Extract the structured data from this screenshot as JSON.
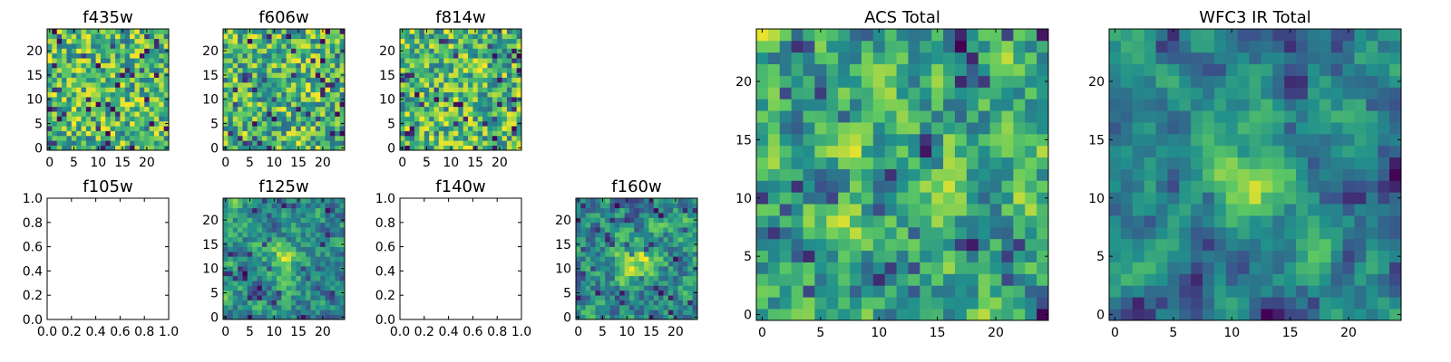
{
  "chart_data": [
    {
      "name": "f435w",
      "type": "heatmap",
      "title": "f435w",
      "has_data": true,
      "grid_size": 25,
      "seed": 11,
      "blob": 0.0,
      "smooth": 0,
      "xlim": [
        -0.5,
        24.5
      ],
      "ylim": [
        -0.5,
        24.5
      ],
      "xticks": [
        0,
        5,
        10,
        15,
        20
      ],
      "yticks": [
        0,
        5,
        10,
        15,
        20
      ],
      "xtick_labels": [
        "0",
        "5",
        "10",
        "15",
        "20"
      ],
      "ytick_labels": [
        "0",
        "5",
        "10",
        "15",
        "20"
      ]
    },
    {
      "name": "f606w",
      "type": "heatmap",
      "title": "f606w",
      "has_data": true,
      "grid_size": 25,
      "seed": 23,
      "blob": 0.0,
      "smooth": 0,
      "xlim": [
        -0.5,
        24.5
      ],
      "ylim": [
        -0.5,
        24.5
      ],
      "xticks": [
        0,
        5,
        10,
        15,
        20
      ],
      "yticks": [
        0,
        5,
        10,
        15,
        20
      ],
      "xtick_labels": [
        "0",
        "5",
        "10",
        "15",
        "20"
      ],
      "ytick_labels": [
        "0",
        "5",
        "10",
        "15",
        "20"
      ]
    },
    {
      "name": "f814w",
      "type": "heatmap",
      "title": "f814w",
      "has_data": true,
      "grid_size": 25,
      "seed": 37,
      "blob": 0.0,
      "smooth": 0,
      "xlim": [
        -0.5,
        24.5
      ],
      "ylim": [
        -0.5,
        24.5
      ],
      "xticks": [
        0,
        5,
        10,
        15,
        20
      ],
      "yticks": [
        0,
        5,
        10,
        15,
        20
      ],
      "xtick_labels": [
        "0",
        "5",
        "10",
        "15",
        "20"
      ],
      "ytick_labels": [
        "0",
        "5",
        "10",
        "15",
        "20"
      ]
    },
    {
      "name": "f105w",
      "type": "heatmap",
      "title": "f105w",
      "has_data": false,
      "xlim": [
        0.0,
        1.0
      ],
      "ylim": [
        0.0,
        1.0
      ],
      "xticks": [
        0.0,
        0.2,
        0.4,
        0.6,
        0.8,
        1.0
      ],
      "yticks": [
        0.0,
        0.2,
        0.4,
        0.6,
        0.8,
        1.0
      ],
      "xtick_labels": [
        "0.0",
        "0.2",
        "0.4",
        "0.6",
        "0.8",
        "1.0"
      ],
      "ytick_labels": [
        "0.0",
        "0.2",
        "0.4",
        "0.6",
        "0.8",
        "1.0"
      ]
    },
    {
      "name": "f125w",
      "type": "heatmap",
      "title": "f125w",
      "has_data": true,
      "grid_size": 25,
      "seed": 53,
      "blob": 0.45,
      "smooth": 1,
      "xlim": [
        -0.5,
        24.5
      ],
      "ylim": [
        -0.5,
        24.5
      ],
      "xticks": [
        0,
        5,
        10,
        15,
        20
      ],
      "yticks": [
        0,
        5,
        10,
        15,
        20
      ],
      "xtick_labels": [
        "0",
        "5",
        "10",
        "15",
        "20"
      ],
      "ytick_labels": [
        "0",
        "5",
        "10",
        "15",
        "20"
      ]
    },
    {
      "name": "f140w",
      "type": "heatmap",
      "title": "f140w",
      "has_data": false,
      "xlim": [
        0.0,
        1.0
      ],
      "ylim": [
        0.0,
        1.0
      ],
      "xticks": [
        0.0,
        0.2,
        0.4,
        0.6,
        0.8,
        1.0
      ],
      "yticks": [
        0.0,
        0.2,
        0.4,
        0.6,
        0.8,
        1.0
      ],
      "xtick_labels": [
        "0.0",
        "0.2",
        "0.4",
        "0.6",
        "0.8",
        "1.0"
      ],
      "ytick_labels": [
        "0.0",
        "0.2",
        "0.4",
        "0.6",
        "0.8",
        "1.0"
      ]
    },
    {
      "name": "f160w",
      "type": "heatmap",
      "title": "f160w",
      "has_data": true,
      "grid_size": 25,
      "seed": 71,
      "blob": 0.6,
      "smooth": 1,
      "xlim": [
        -0.5,
        24.5
      ],
      "ylim": [
        -0.5,
        24.5
      ],
      "xticks": [
        0,
        5,
        10,
        15,
        20
      ],
      "yticks": [
        0,
        5,
        10,
        15,
        20
      ],
      "xtick_labels": [
        "0",
        "5",
        "10",
        "15",
        "20"
      ],
      "ytick_labels": [
        "0",
        "5",
        "10",
        "15",
        "20"
      ]
    },
    {
      "name": "acs-total",
      "type": "heatmap",
      "title": "ACS Total",
      "has_data": true,
      "grid_size": 25,
      "seed": 89,
      "blob": 0.1,
      "smooth": 1,
      "xlim": [
        -0.5,
        24.5
      ],
      "ylim": [
        -0.5,
        24.5
      ],
      "xticks": [
        0,
        5,
        10,
        15,
        20
      ],
      "yticks": [
        0,
        5,
        10,
        15,
        20
      ],
      "xtick_labels": [
        "0",
        "5",
        "10",
        "15",
        "20"
      ],
      "ytick_labels": [
        "0",
        "5",
        "10",
        "15",
        "20"
      ]
    },
    {
      "name": "wfc3-ir-total",
      "type": "heatmap",
      "title": "WFC3 IR Total",
      "has_data": true,
      "grid_size": 25,
      "seed": 97,
      "blob": 0.75,
      "smooth": 2,
      "xlim": [
        -0.5,
        24.5
      ],
      "ylim": [
        -0.5,
        24.5
      ],
      "xticks": [
        0,
        5,
        10,
        15,
        20
      ],
      "yticks": [
        0,
        5,
        10,
        15,
        20
      ],
      "xtick_labels": [
        "0",
        "5",
        "10",
        "15",
        "20"
      ],
      "ytick_labels": [
        "0",
        "5",
        "10",
        "15",
        "20"
      ]
    }
  ],
  "colormap": [
    "#440154",
    "#3b528b",
    "#21918c",
    "#5ec962",
    "#fde725"
  ]
}
